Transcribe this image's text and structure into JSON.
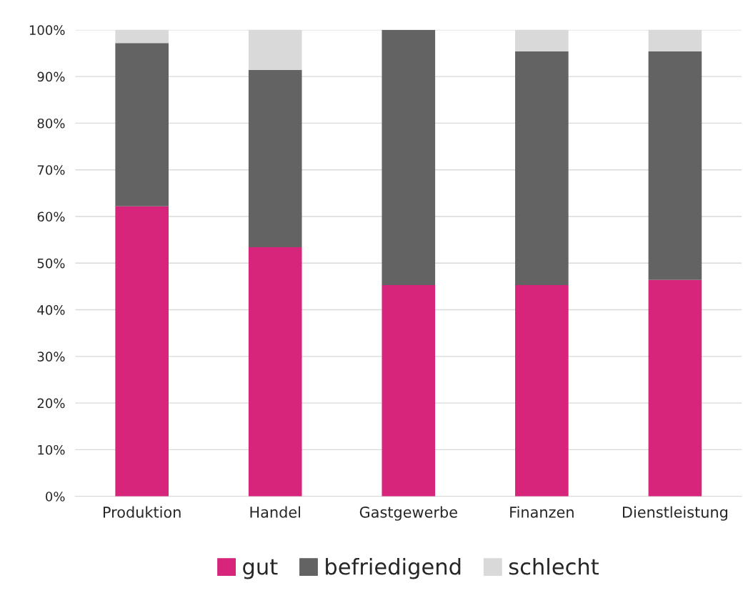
{
  "chart_data": {
    "type": "bar",
    "stacked": true,
    "categories": [
      "Produktion",
      "Handel",
      "Gastgewerbe",
      "Finanzen",
      "Dienstleistung"
    ],
    "series": [
      {
        "name": "gut",
        "color": "#d6257a",
        "values": [
          62.2,
          53.4,
          45.3,
          45.3,
          46.4
        ]
      },
      {
        "name": "befriedigend",
        "color": "#636363",
        "values": [
          35.0,
          38.0,
          54.7,
          50.1,
          49.0
        ]
      },
      {
        "name": "schlecht",
        "color": "#d9d9d9",
        "values": [
          2.8,
          8.6,
          0,
          4.6,
          4.6
        ]
      }
    ],
    "ylim": [
      0,
      100
    ],
    "yticks": [
      {
        "value": 0,
        "label": "0%"
      },
      {
        "value": 10,
        "label": "10%"
      },
      {
        "value": 20,
        "label": "20%"
      },
      {
        "value": 30,
        "label": "30%"
      },
      {
        "value": 40,
        "label": "40%"
      },
      {
        "value": 50,
        "label": "50%"
      },
      {
        "value": 60,
        "label": "60%"
      },
      {
        "value": 70,
        "label": "70%"
      },
      {
        "value": 80,
        "label": "80%"
      },
      {
        "value": 90,
        "label": "90%"
      },
      {
        "value": 100,
        "label": "100%"
      }
    ],
    "grid": "y",
    "legend": "bottom"
  }
}
